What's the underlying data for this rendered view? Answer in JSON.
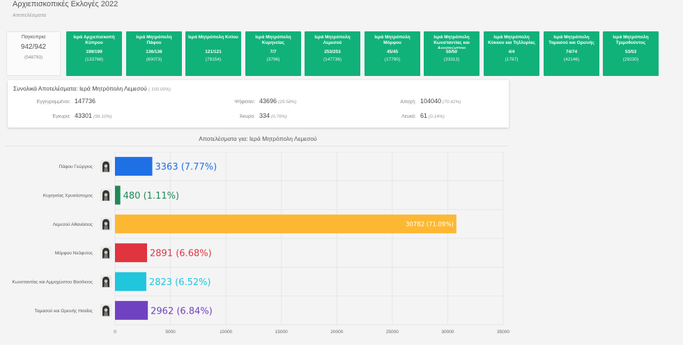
{
  "header": {
    "title": "Αρχιεπισκοπικές Εκλογές 2022",
    "subtitle": "Αποτελέσματα"
  },
  "tiles": [
    {
      "name": "Παγκύπρια",
      "count": "942/942",
      "votes": "(548793)",
      "kind": "total"
    },
    {
      "name": "Ιερά Αρχιεπισκοπή Κύπρου",
      "count": "199/199",
      "votes": "(133768)",
      "kind": "metro"
    },
    {
      "name": "Ιερά Μητρόπολη Πάφου",
      "count": "136/136",
      "votes": "(60073)",
      "kind": "metro"
    },
    {
      "name": "Ιερά Μητρόπολη Κιτίου",
      "count": "121/121",
      "votes": "(79154)",
      "kind": "metro"
    },
    {
      "name": "Ιερά Μητρόπολη Κυρηνείας",
      "count": "7/7",
      "votes": "(3796)",
      "kind": "metro"
    },
    {
      "name": "Ιερά Μητρόπολη Λεμεσού",
      "count": "253/253",
      "votes": "(147736)",
      "kind": "metro"
    },
    {
      "name": "Ιερά Μητρόπολη Μόρφου",
      "count": "45/45",
      "votes": "(17790)",
      "kind": "metro"
    },
    {
      "name": "Ιερά Μητρόπολη Κωνσταντίας και Αμμοχώστου",
      "count": "50/50",
      "votes": "(33313)",
      "kind": "metro"
    },
    {
      "name": "Ιερά Μητρόπολη Κύκκου και Τηλλυρίας",
      "count": "4/4",
      "votes": "(1787)",
      "kind": "metro"
    },
    {
      "name": "Ιερά Μητρόπολη Ταμασού και Ορεινής",
      "count": "74/74",
      "votes": "(42146)",
      "kind": "metro"
    },
    {
      "name": "Ιερά Μητρόπολη Τριμυθούντος",
      "count": "53/53",
      "votes": "(29230)",
      "kind": "metro"
    }
  ],
  "summary": {
    "title": "Συνολικά Αποτελέσματα: Ιερά Μητρόπολη Λεμεσού",
    "title_pct": "( 100.00%)",
    "registered_label": "Εγγεγραμμένοι:",
    "registered_value": "147736",
    "voted_label": "Ψήφισαν:",
    "voted_value": "43696",
    "voted_pct": "(29.58%)",
    "abstain_label": "Αποχή:",
    "abstain_value": "104040",
    "abstain_pct": "(70.42%)",
    "valid_label": "Έγκυρα:",
    "valid_value": "43301",
    "valid_pct": "(99.10%)",
    "invalid_label": "Άκυρα:",
    "invalid_value": "334",
    "invalid_pct": "(0.76%)",
    "blank_label": "Λευκά:",
    "blank_value": "61",
    "blank_pct": "(0.14%)"
  },
  "colors": {
    "tile_green": "#11b17a"
  },
  "chart_data": {
    "type": "bar",
    "orientation": "horizontal",
    "title": "Αποτελέσματα για: Ιερά Μητρόπολη Λεμεσού",
    "categories": [
      "Πάφου Γεώργιος",
      "Κυρηνείας Χρυσόστομος",
      "Λεμεσού Αθανάσιος",
      "Μόρφου Νεόφυτος",
      "Κωνσταντίας και Αμμοχώστου Βασίλειος",
      "Ταμασού και Ορεινής Ησαΐας"
    ],
    "values": [
      3363,
      480,
      30782,
      2891,
      2823,
      2962
    ],
    "labels": [
      "3363 (7.77%)",
      "480 (1.11%)",
      "30782 (71.09%)",
      "2891 (6.68%)",
      "2823 (6.52%)",
      "2962 (6.84%)"
    ],
    "colors": [
      "#1f6fe5",
      "#1e8a57",
      "#fdb833",
      "#e0343f",
      "#1fc6dc",
      "#6f42c1"
    ],
    "xlim": [
      0,
      35000
    ],
    "xticks": [
      0,
      5000,
      10000,
      15000,
      20000,
      25000,
      30000,
      35000
    ],
    "grid": true,
    "avatar_icon": "bishop-avatar-icon"
  }
}
